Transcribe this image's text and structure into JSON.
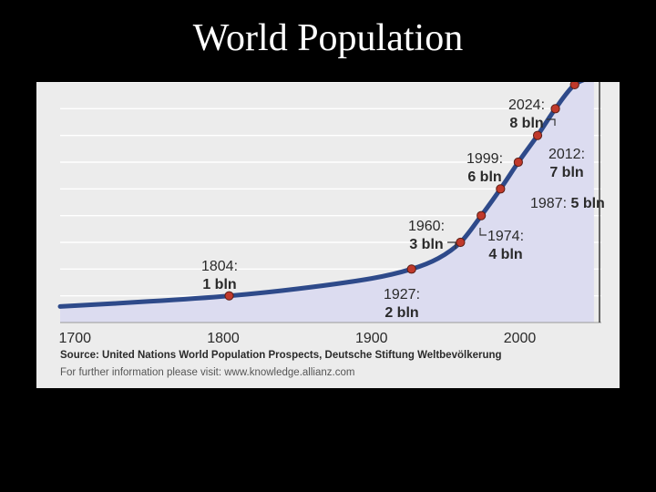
{
  "slide": {
    "title": "World Population"
  },
  "chart_data": {
    "type": "area",
    "title": "",
    "xlabel": "",
    "ylabel": "",
    "xlim": [
      1690,
      2055
    ],
    "ylim": [
      0,
      9
    ],
    "x_ticks": [
      "1700",
      "1800",
      "1900",
      "2000"
    ],
    "grid": true,
    "colors": {
      "line": "#2e4a8a",
      "fill": "#dcdcf0",
      "marker": "#c0392b"
    },
    "series": [
      {
        "x": [
          1690,
          1750,
          1804,
          1850,
          1900,
          1927,
          1945,
          1960,
          1974,
          1987,
          1999,
          2012,
          2024,
          2037,
          2050
        ],
        "y": [
          0.6,
          0.79,
          1.0,
          1.26,
          1.65,
          2.0,
          2.4,
          3.0,
          4.0,
          5.0,
          6.0,
          7.0,
          8.0,
          8.9,
          9.2
        ]
      }
    ],
    "annotations": [
      {
        "year_label": "1804:",
        "value_label": "1 bln",
        "x": 1804,
        "y": 1
      },
      {
        "year_label": "1927:",
        "value_label": "2 bln",
        "x": 1927,
        "y": 2
      },
      {
        "year_label": "1960:",
        "value_label": "3 bln",
        "x": 1960,
        "y": 3
      },
      {
        "year_label": "1974:",
        "value_label": "4 bln",
        "x": 1974,
        "y": 4
      },
      {
        "year_label": "1987:",
        "value_label": "5 bln",
        "x": 1987,
        "y": 5
      },
      {
        "year_label": "1999:",
        "value_label": "6 bln",
        "x": 1999,
        "y": 6
      },
      {
        "year_label": "2012:",
        "value_label": "7 bln",
        "x": 2012,
        "y": 7
      },
      {
        "year_label": "2024:",
        "value_label": "8 bln",
        "x": 2024,
        "y": 8
      },
      {
        "year_label": "",
        "value_label": "",
        "x": 2037,
        "y": 8.9
      }
    ],
    "source": "Source: United Nations World Population Prospects, Deutsche Stiftung Weltbevölkerung",
    "info": "For further information please visit: www.knowledge.allianz.com"
  }
}
